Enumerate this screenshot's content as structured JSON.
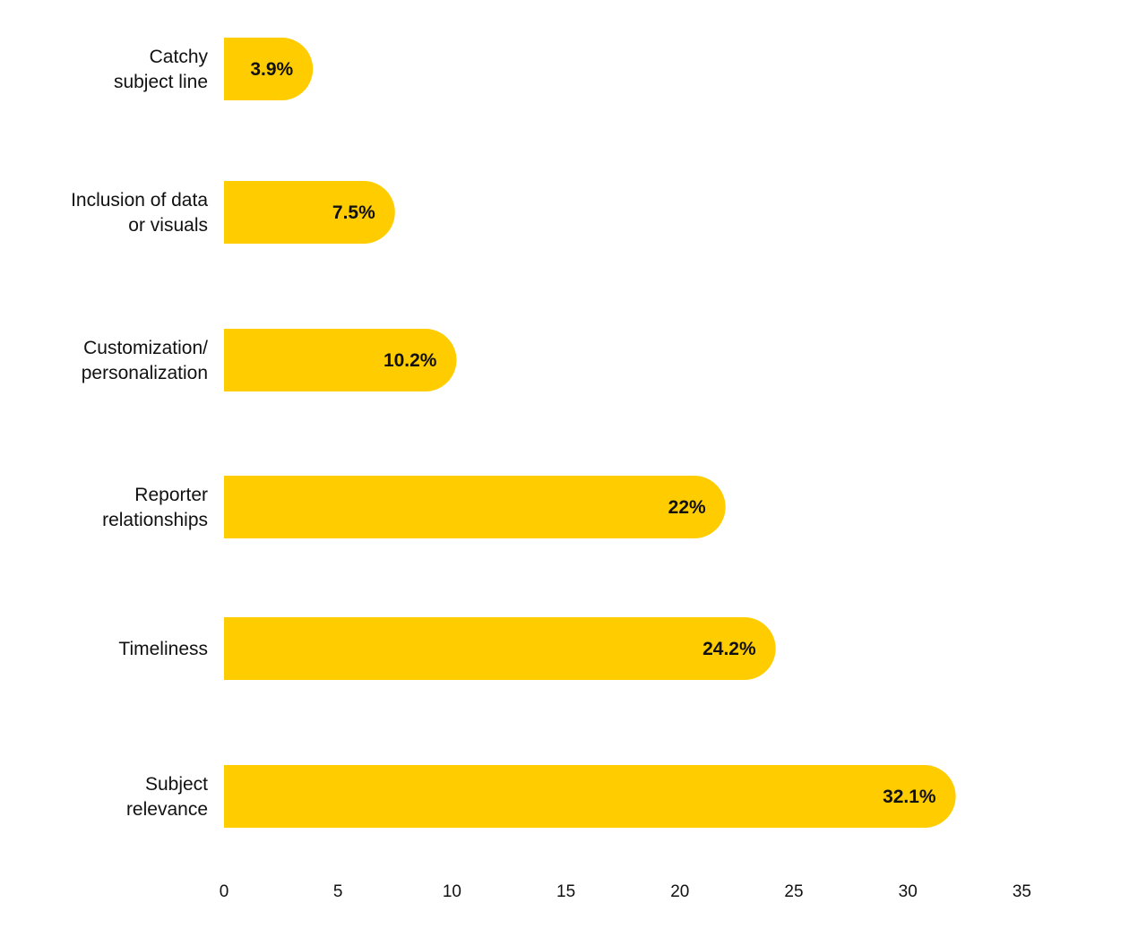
{
  "chart_data": {
    "type": "bar",
    "orientation": "horizontal",
    "categories": [
      [
        "Catchy",
        "subject line"
      ],
      [
        "Inclusion of data",
        "or visuals"
      ],
      [
        "Customization/",
        "personalization"
      ],
      [
        "Reporter",
        "relationships"
      ],
      [
        "Timeliness"
      ],
      [
        "Subject",
        "relevance"
      ]
    ],
    "values": [
      3.9,
      7.5,
      10.2,
      22,
      24.2,
      32.1
    ],
    "value_labels": [
      "3.9%",
      "7.5%",
      "10.2%",
      "22%",
      "24.2%",
      "32.1%"
    ],
    "xlim": [
      0,
      35
    ],
    "xticks": [
      "0",
      "5",
      "10",
      "15",
      "20",
      "25",
      "30",
      "35"
    ],
    "title": "",
    "xlabel": "",
    "ylabel": "",
    "grid": false,
    "legend": "none",
    "bar_color": "#FFCC00",
    "text_color": "#111111"
  }
}
